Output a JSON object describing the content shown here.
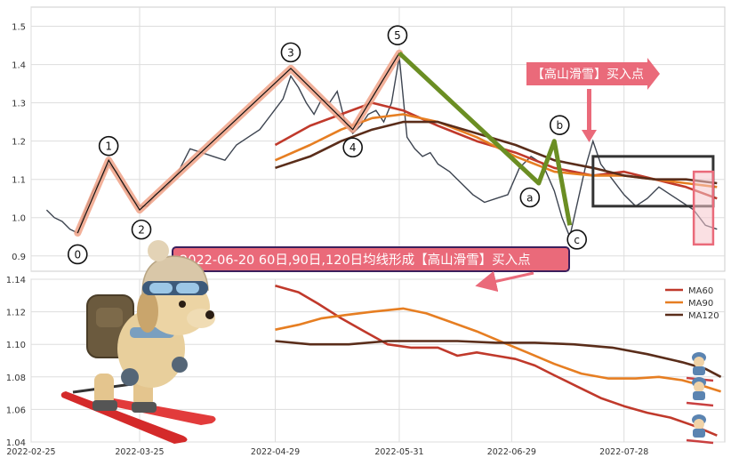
{
  "chart_data": [
    {
      "type": "line",
      "panel": "price-wave",
      "ylim": [
        0.86,
        1.55
      ],
      "yticks": [
        0.9,
        1.0,
        1.1,
        1.2,
        1.3,
        1.4,
        1.5
      ],
      "xlim": [
        "2022-02-25",
        "2022-08-23"
      ],
      "grid": true,
      "price_series": [
        [
          "2022-03-01",
          1.02
        ],
        [
          "2022-03-03",
          1.0
        ],
        [
          "2022-03-05",
          0.99
        ],
        [
          "2022-03-07",
          0.97
        ],
        [
          "2022-03-09",
          0.96
        ],
        [
          "2022-03-11",
          1.02
        ],
        [
          "2022-03-13",
          1.07
        ],
        [
          "2022-03-15",
          1.1
        ],
        [
          "2022-03-17",
          1.14
        ],
        [
          "2022-03-19",
          1.12
        ],
        [
          "2022-03-21",
          1.08
        ],
        [
          "2022-03-23",
          1.05
        ],
        [
          "2022-03-25",
          1.03
        ],
        [
          "2022-03-27",
          1.03
        ],
        [
          "2022-03-29",
          1.06
        ],
        [
          "2022-04-01",
          1.08
        ],
        [
          "2022-04-04",
          1.12
        ],
        [
          "2022-04-07",
          1.18
        ],
        [
          "2022-04-10",
          1.17
        ],
        [
          "2022-04-13",
          1.16
        ],
        [
          "2022-04-16",
          1.15
        ],
        [
          "2022-04-19",
          1.19
        ],
        [
          "2022-04-22",
          1.21
        ],
        [
          "2022-04-25",
          1.23
        ],
        [
          "2022-04-28",
          1.27
        ],
        [
          "2022-05-01",
          1.31
        ],
        [
          "2022-05-03",
          1.37
        ],
        [
          "2022-05-05",
          1.34
        ],
        [
          "2022-05-07",
          1.3
        ],
        [
          "2022-05-09",
          1.27
        ],
        [
          "2022-05-11",
          1.31
        ],
        [
          "2022-05-13",
          1.3
        ],
        [
          "2022-05-15",
          1.33
        ],
        [
          "2022-05-17",
          1.25
        ],
        [
          "2022-05-19",
          1.22
        ],
        [
          "2022-05-21",
          1.24
        ],
        [
          "2022-05-23",
          1.27
        ],
        [
          "2022-05-25",
          1.28
        ],
        [
          "2022-05-27",
          1.25
        ],
        [
          "2022-05-29",
          1.3
        ],
        [
          "2022-05-31",
          1.42
        ],
        [
          "2022-06-02",
          1.21
        ],
        [
          "2022-06-04",
          1.18
        ],
        [
          "2022-06-06",
          1.16
        ],
        [
          "2022-06-08",
          1.17
        ],
        [
          "2022-06-10",
          1.14
        ],
        [
          "2022-06-13",
          1.12
        ],
        [
          "2022-06-16",
          1.09
        ],
        [
          "2022-06-19",
          1.06
        ],
        [
          "2022-06-22",
          1.04
        ],
        [
          "2022-06-25",
          1.05
        ],
        [
          "2022-06-28",
          1.06
        ],
        [
          "2022-07-01",
          1.13
        ],
        [
          "2022-07-04",
          1.16
        ],
        [
          "2022-07-07",
          1.14
        ],
        [
          "2022-07-10",
          1.07
        ],
        [
          "2022-07-12",
          1.0
        ],
        [
          "2022-07-14",
          0.95
        ],
        [
          "2022-07-16",
          1.04
        ],
        [
          "2022-07-18",
          1.13
        ],
        [
          "2022-07-20",
          1.2
        ],
        [
          "2022-07-22",
          1.14
        ],
        [
          "2022-07-25",
          1.1
        ],
        [
          "2022-07-28",
          1.06
        ],
        [
          "2022-07-31",
          1.03
        ],
        [
          "2022-08-03",
          1.05
        ],
        [
          "2022-08-06",
          1.08
        ],
        [
          "2022-08-09",
          1.06
        ],
        [
          "2022-08-12",
          1.04
        ],
        [
          "2022-08-15",
          1.02
        ],
        [
          "2022-08-18",
          0.98
        ],
        [
          "2022-08-21",
          0.97
        ]
      ],
      "ma_series": [
        {
          "key": "ma60",
          "color": "#c0392b",
          "points": [
            [
              "2022-04-29",
              1.19
            ],
            [
              "2022-05-08",
              1.24
            ],
            [
              "2022-05-16",
              1.27
            ],
            [
              "2022-05-24",
              1.3
            ],
            [
              "2022-06-01",
              1.28
            ],
            [
              "2022-06-10",
              1.24
            ],
            [
              "2022-06-20",
              1.2
            ],
            [
              "2022-06-30",
              1.17
            ],
            [
              "2022-07-10",
              1.13
            ],
            [
              "2022-07-20",
              1.11
            ],
            [
              "2022-07-28",
              1.12
            ],
            [
              "2022-08-05",
              1.1
            ],
            [
              "2022-08-13",
              1.08
            ],
            [
              "2022-08-21",
              1.05
            ]
          ]
        },
        {
          "key": "ma90",
          "color": "#e67e22",
          "points": [
            [
              "2022-04-29",
              1.15
            ],
            [
              "2022-05-08",
              1.19
            ],
            [
              "2022-05-16",
              1.23
            ],
            [
              "2022-05-24",
              1.26
            ],
            [
              "2022-06-01",
              1.27
            ],
            [
              "2022-06-10",
              1.25
            ],
            [
              "2022-06-20",
              1.21
            ],
            [
              "2022-06-30",
              1.16
            ],
            [
              "2022-07-10",
              1.12
            ],
            [
              "2022-07-20",
              1.11
            ],
            [
              "2022-07-28",
              1.11
            ],
            [
              "2022-08-05",
              1.1
            ],
            [
              "2022-08-13",
              1.09
            ],
            [
              "2022-08-21",
              1.08
            ]
          ]
        },
        {
          "key": "ma120",
          "color": "#5a2d1a",
          "points": [
            [
              "2022-04-29",
              1.13
            ],
            [
              "2022-05-08",
              1.16
            ],
            [
              "2022-05-16",
              1.2
            ],
            [
              "2022-05-24",
              1.23
            ],
            [
              "2022-06-01",
              1.25
            ],
            [
              "2022-06-10",
              1.25
            ],
            [
              "2022-06-20",
              1.22
            ],
            [
              "2022-06-30",
              1.19
            ],
            [
              "2022-07-10",
              1.15
            ],
            [
              "2022-07-20",
              1.13
            ],
            [
              "2022-07-28",
              1.11
            ],
            [
              "2022-08-05",
              1.1
            ],
            [
              "2022-08-13",
              1.1
            ],
            [
              "2022-08-21",
              1.09
            ]
          ]
        }
      ],
      "wave_points": [
        {
          "label": "0",
          "x": "2022-03-09",
          "y": 0.96
        },
        {
          "label": "1",
          "x": "2022-03-17",
          "y": 1.15
        },
        {
          "label": "2",
          "x": "2022-03-25",
          "y": 1.02
        },
        {
          "label": "3",
          "x": "2022-05-03",
          "y": 1.39
        },
        {
          "label": "4",
          "x": "2022-05-19",
          "y": 1.23
        },
        {
          "label": "5",
          "x": "2022-05-31",
          "y": 1.43
        },
        {
          "label": "a",
          "x": "2022-07-06",
          "y": 1.09
        },
        {
          "label": "b",
          "x": "2022-07-10",
          "y": 1.2
        },
        {
          "label": "c",
          "x": "2022-07-14",
          "y": 0.98
        }
      ],
      "impulse_color": "#f0a287",
      "correction_color": "#6b8e23",
      "annotation": {
        "text": "【高山滑雪】买入点",
        "color": "#ea6a7a",
        "x": "2022-07-20",
        "y": 1.15
      },
      "highlight_box": {
        "x0": "2022-07-20",
        "x1": "2022-08-20",
        "y0": 1.03,
        "y1": 1.16,
        "color": "#333333"
      },
      "signal_box": {
        "x0": "2022-08-15",
        "x1": "2022-08-20",
        "y0": 0.93,
        "y1": 1.12,
        "color": "#ea6a7a"
      }
    },
    {
      "type": "line",
      "panel": "moving-averages",
      "ylim": [
        1.04,
        1.14
      ],
      "yticks": [
        1.04,
        1.06,
        1.08,
        1.1,
        1.12,
        1.14
      ],
      "xlim": [
        "2022-02-25",
        "2022-08-23"
      ],
      "xticks": [
        "2022-02-25",
        "2022-03-25",
        "2022-04-29",
        "2022-05-31",
        "2022-06-29",
        "2022-07-28"
      ],
      "grid": true,
      "legend": "top-right",
      "series": [
        {
          "name": "MA60",
          "color": "#c0392b",
          "points": [
            [
              "2022-04-29",
              1.136
            ],
            [
              "2022-05-05",
              1.132
            ],
            [
              "2022-05-10",
              1.125
            ],
            [
              "2022-05-16",
              1.116
            ],
            [
              "2022-05-22",
              1.108
            ],
            [
              "2022-05-28",
              1.1
            ],
            [
              "2022-06-03",
              1.098
            ],
            [
              "2022-06-10",
              1.098
            ],
            [
              "2022-06-15",
              1.093
            ],
            [
              "2022-06-20",
              1.095
            ],
            [
              "2022-06-25",
              1.093
            ],
            [
              "2022-06-30",
              1.091
            ],
            [
              "2022-07-05",
              1.087
            ],
            [
              "2022-07-10",
              1.081
            ],
            [
              "2022-07-16",
              1.074
            ],
            [
              "2022-07-22",
              1.067
            ],
            [
              "2022-07-28",
              1.062
            ],
            [
              "2022-08-03",
              1.058
            ],
            [
              "2022-08-09",
              1.055
            ],
            [
              "2022-08-15",
              1.05
            ],
            [
              "2022-08-21",
              1.044
            ]
          ]
        },
        {
          "name": "MA90",
          "color": "#e67e22",
          "points": [
            [
              "2022-04-29",
              1.109
            ],
            [
              "2022-05-05",
              1.112
            ],
            [
              "2022-05-11",
              1.116
            ],
            [
              "2022-05-17",
              1.118
            ],
            [
              "2022-05-24",
              1.12
            ],
            [
              "2022-06-01",
              1.122
            ],
            [
              "2022-06-07",
              1.119
            ],
            [
              "2022-06-13",
              1.114
            ],
            [
              "2022-06-20",
              1.108
            ],
            [
              "2022-06-27",
              1.101
            ],
            [
              "2022-07-03",
              1.095
            ],
            [
              "2022-07-10",
              1.088
            ],
            [
              "2022-07-17",
              1.082
            ],
            [
              "2022-07-24",
              1.079
            ],
            [
              "2022-07-31",
              1.079
            ],
            [
              "2022-08-06",
              1.08
            ],
            [
              "2022-08-12",
              1.078
            ],
            [
              "2022-08-18",
              1.074
            ],
            [
              "2022-08-22",
              1.071
            ]
          ]
        },
        {
          "name": "MA120",
          "color": "#5a2d1a",
          "points": [
            [
              "2022-04-29",
              1.102
            ],
            [
              "2022-05-08",
              1.1
            ],
            [
              "2022-05-18",
              1.1
            ],
            [
              "2022-05-28",
              1.102
            ],
            [
              "2022-06-06",
              1.102
            ],
            [
              "2022-06-15",
              1.102
            ],
            [
              "2022-06-25",
              1.101
            ],
            [
              "2022-07-05",
              1.101
            ],
            [
              "2022-07-15",
              1.1
            ],
            [
              "2022-07-25",
              1.098
            ],
            [
              "2022-08-03",
              1.094
            ],
            [
              "2022-08-12",
              1.089
            ],
            [
              "2022-08-18",
              1.085
            ],
            [
              "2022-08-22",
              1.08
            ]
          ]
        }
      ],
      "annotation": {
        "text": "2022-06-20 60日,90日,120日均线形成【高山滑雪】买入点",
        "x": "2022-06-20",
        "y": 1.13
      }
    }
  ]
}
